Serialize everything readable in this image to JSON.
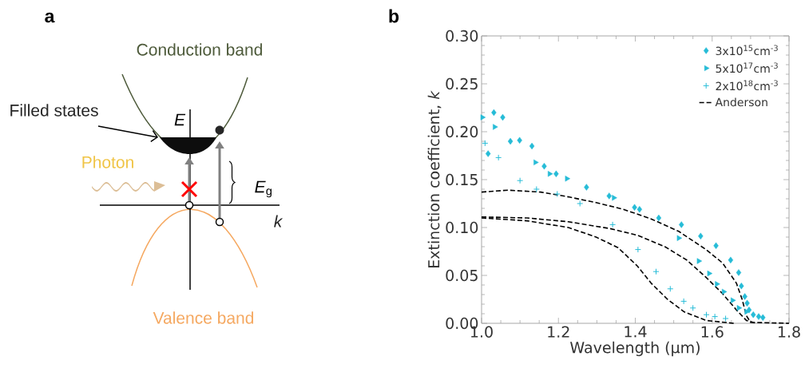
{
  "chart_data": [
    {
      "type": "other",
      "title": "a",
      "annotations": [
        "Conduction band",
        "Filled states",
        "E",
        "Photon",
        "*E*$_{g}$",
        "k",
        "Valence band"
      ]
    },
    {
      "type": "scatter",
      "title": "b",
      "xlabel": "Wavelength (μm)",
      "ylabel": "Extinction coefficient, *k*",
      "xlim": [
        1.0,
        1.8
      ],
      "ylim": [
        0.0,
        0.3
      ],
      "xticks": [
        {
          "value": 1.0,
          "label": "1.0"
        },
        {
          "value": 1.2,
          "label": "1.2"
        },
        {
          "value": 1.4,
          "label": "1.4"
        },
        {
          "value": 1.6,
          "label": "1.6"
        },
        {
          "value": 1.8,
          "label": "1.8"
        }
      ],
      "yticks": [
        {
          "value": 0.0,
          "label": "0.00"
        },
        {
          "value": 0.05,
          "label": "0.05"
        },
        {
          "value": 0.1,
          "label": "0.10"
        },
        {
          "value": 0.15,
          "label": "0.15"
        },
        {
          "value": 0.2,
          "label": "0.20"
        },
        {
          "value": 0.25,
          "label": "0.25"
        },
        {
          "value": 0.3,
          "label": "0.30"
        }
      ],
      "legend": "top right",
      "grid": false,
      "series": [
        {
          "name": "3x10$^{15}$cm$^{-3}$",
          "type": "scatter",
          "marker": "diamond",
          "color": "#26bcd7",
          "x": [
            1.017,
            1.032,
            1.055,
            1.075,
            1.099,
            1.131,
            1.163,
            1.194,
            1.273,
            1.332,
            1.398,
            1.411,
            1.461,
            1.52,
            1.57,
            1.61,
            1.648,
            1.669,
            1.676,
            1.685,
            1.691,
            1.696,
            1.707,
            1.721,
            1.732
          ],
          "values": [
            0.177,
            0.22,
            0.215,
            0.19,
            0.191,
            0.185,
            0.164,
            0.156,
            0.142,
            0.133,
            0.121,
            0.119,
            0.11,
            0.103,
            0.091,
            0.081,
            0.066,
            0.053,
            0.039,
            0.028,
            0.021,
            0.014,
            0.009,
            0.007,
            0.006
          ]
        },
        {
          "name": "5x10$^{17}$cm$^{-3}$",
          "type": "scatter",
          "marker": "triangle",
          "color": "#26bcd7",
          "x": [
            1.002,
            1.034,
            1.14,
            1.177,
            1.222,
            1.344,
            1.513,
            1.565,
            1.592,
            1.612,
            1.63,
            1.653,
            1.669,
            1.689
          ],
          "values": [
            0.215,
            0.205,
            0.168,
            0.156,
            0.151,
            0.131,
            0.089,
            0.065,
            0.052,
            0.041,
            0.033,
            0.024,
            0.016,
            0.012
          ]
        },
        {
          "name": "2x10$^{18}$cm$^{-3}$",
          "type": "scatter",
          "marker": "cross",
          "color": "#26bcd7",
          "x": [
            1.009,
            1.044,
            1.1,
            1.143,
            1.197,
            1.256,
            1.341,
            1.407,
            1.454,
            1.491,
            1.526,
            1.55,
            1.585,
            1.607,
            1.635
          ],
          "values": [
            0.188,
            0.173,
            0.149,
            0.14,
            0.135,
            0.125,
            0.103,
            0.077,
            0.054,
            0.036,
            0.023,
            0.016,
            0.009,
            0.007,
            0.005
          ]
        },
        {
          "name": "Anderson",
          "type": "line",
          "line_style": "dashed",
          "marker": "none",
          "color": "#000000",
          "x": [
            1.0,
            1.068,
            1.154,
            1.226,
            1.298,
            1.369,
            1.441,
            1.513,
            1.584,
            1.627,
            1.663,
            1.678,
            1.689,
            1.7,
            1.8
          ],
          "values": [
            0.137,
            0.139,
            0.137,
            0.132,
            0.126,
            0.119,
            0.109,
            0.096,
            0.077,
            0.063,
            0.042,
            0.025,
            0.008,
            0.001,
            0.0
          ]
        },
        {
          "type": "line",
          "line_style": "dashed",
          "marker": "none",
          "color": "#000000",
          "x": [
            1.0,
            1.118,
            1.226,
            1.333,
            1.405,
            1.477,
            1.534,
            1.584,
            1.627,
            1.663,
            1.689,
            1.714
          ],
          "values": [
            0.111,
            0.11,
            0.106,
            0.099,
            0.092,
            0.08,
            0.066,
            0.048,
            0.031,
            0.014,
            0.003,
            0.0
          ]
        },
        {
          "type": "line",
          "line_style": "dashed",
          "marker": "none",
          "color": "#000000",
          "x": [
            1.0,
            1.118,
            1.226,
            1.298,
            1.355,
            1.405,
            1.441,
            1.484,
            1.527,
            1.584,
            1.656
          ],
          "values": [
            0.11,
            0.107,
            0.1,
            0.09,
            0.079,
            0.06,
            0.042,
            0.025,
            0.012,
            0.003,
            0.0
          ]
        }
      ]
    }
  ]
}
